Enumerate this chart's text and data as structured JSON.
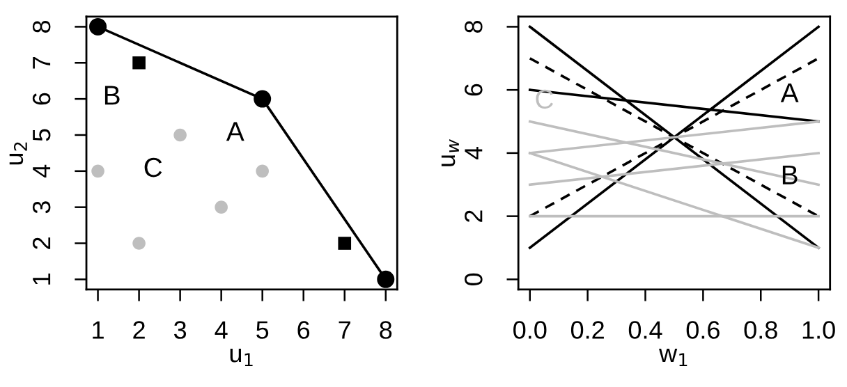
{
  "chart_data": [
    {
      "type": "scatter",
      "xlabel": "u$_{1}$",
      "ylabel": "u$_{2}$",
      "xlim": [
        0.72,
        8.28
      ],
      "ylim": [
        0.72,
        8.28
      ],
      "xticks": [
        1,
        2,
        3,
        4,
        5,
        6,
        7,
        8
      ],
      "yticks": [
        1,
        2,
        3,
        4,
        5,
        6,
        7,
        8
      ],
      "grid": false,
      "legend": false,
      "series": [
        {
          "type": "line",
          "marker": "circle",
          "color": "#000000",
          "x": [
            1,
            5,
            8
          ],
          "values": [
            8,
            6,
            1
          ]
        },
        {
          "marker": "square",
          "color": "#000000",
          "x": [
            2,
            7
          ],
          "values": [
            7,
            2
          ]
        },
        {
          "marker": "circle",
          "color": "#bebebe",
          "x": [
            1,
            2,
            3,
            4,
            5
          ],
          "values": [
            4,
            2,
            5,
            3,
            4
          ]
        }
      ],
      "annotations": [
        {
          "text": "A",
          "x": 5,
          "y": 6
        },
        {
          "text": "B",
          "x": 2,
          "y": 7
        },
        {
          "text": "C",
          "x": 3,
          "y": 5
        }
      ]
    },
    {
      "type": "line",
      "xlabel": "w$_{1}$",
      "ylabel": "u$_{w}$",
      "xlim": [
        -0.04,
        1.04
      ],
      "ylim": [
        -0.32,
        8.32
      ],
      "xticks": [
        {
          "value": 0,
          "label": "0.0"
        },
        {
          "value": 0.2,
          "label": "0.2"
        },
        {
          "value": 0.4,
          "label": "0.4"
        },
        {
          "value": 0.6,
          "label": "0.6"
        },
        {
          "value": 0.8,
          "label": "0.8"
        },
        {
          "value": 1,
          "label": "1.0"
        }
      ],
      "yticks": [
        0,
        2,
        4,
        6,
        8
      ],
      "grid": false,
      "legend": false,
      "x": [
        0,
        1
      ],
      "series": [
        {
          "color": "#000000",
          "line_style": "solid",
          "values": [
            8,
            1
          ]
        },
        {
          "color": "#000000",
          "line_style": "solid",
          "values": [
            6,
            5
          ]
        },
        {
          "color": "#000000",
          "line_style": "solid",
          "values": [
            1,
            8
          ]
        },
        {
          "color": "#000000",
          "line_style": "dashed",
          "values": [
            7,
            2
          ]
        },
        {
          "color": "#000000",
          "line_style": "dashed",
          "values": [
            2,
            7
          ]
        },
        {
          "color": "#bebebe",
          "line_style": "solid",
          "values": [
            4,
            1
          ]
        },
        {
          "color": "#bebebe",
          "line_style": "solid",
          "values": [
            2,
            2
          ]
        },
        {
          "color": "#bebebe",
          "line_style": "solid",
          "values": [
            5,
            3
          ]
        },
        {
          "color": "#bebebe",
          "line_style": "solid",
          "values": [
            3,
            4
          ]
        },
        {
          "color": "#bebebe",
          "line_style": "solid",
          "values": [
            4,
            5
          ]
        }
      ],
      "annotations": [
        {
          "text": "A",
          "x": 0.9,
          "y": 5.1
        },
        {
          "text": "B",
          "x": 0.9,
          "y": 2.5
        },
        {
          "text": "C",
          "x": 0.05,
          "y": 4.9
        }
      ]
    }
  ]
}
